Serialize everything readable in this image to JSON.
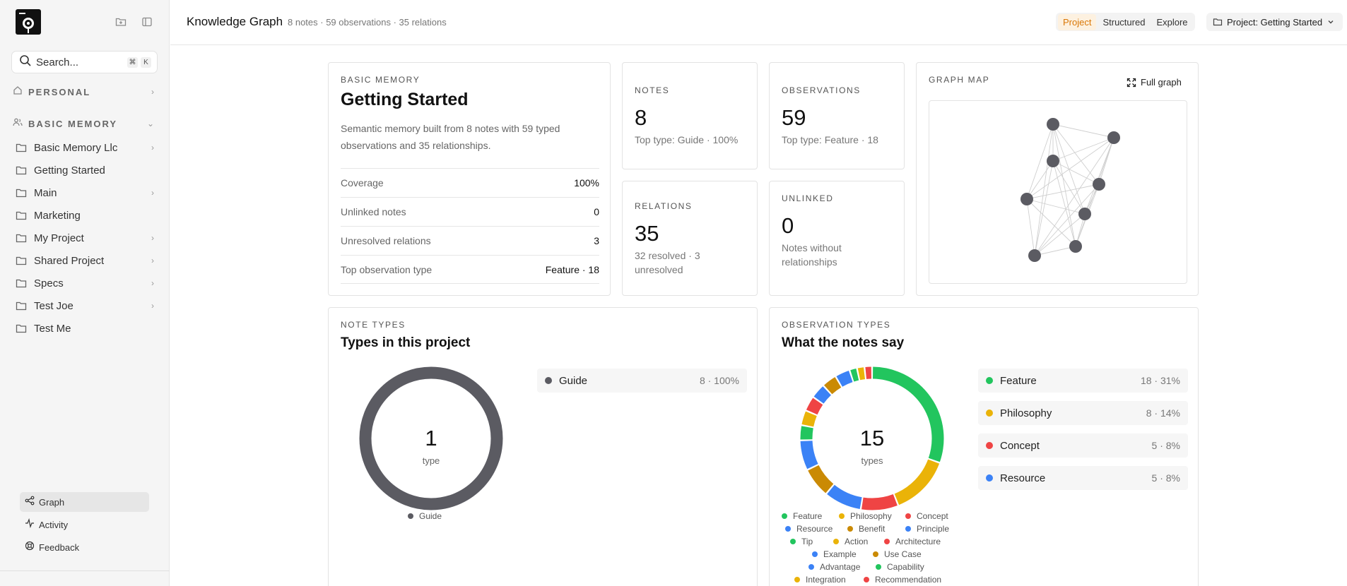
{
  "sidebar": {
    "search_label": "Search...",
    "kbd": [
      "⌘",
      "K"
    ],
    "personal_label": "PERSONAL",
    "basic_memory_label": "BASIC MEMORY",
    "tree": [
      {
        "label": "Basic Memory Llc",
        "has_children": true
      },
      {
        "label": "Getting Started",
        "has_children": false
      },
      {
        "label": "Main",
        "has_children": true
      },
      {
        "label": "Marketing",
        "has_children": false
      },
      {
        "label": "My Project",
        "has_children": true
      },
      {
        "label": "Shared Project",
        "has_children": true
      },
      {
        "label": "Specs",
        "has_children": true
      },
      {
        "label": "Test Joe",
        "has_children": true
      },
      {
        "label": "Test Me",
        "has_children": false
      }
    ],
    "footer": [
      {
        "label": "Graph",
        "icon": "share-graph-icon",
        "active": true
      },
      {
        "label": "Activity",
        "icon": "activity-icon",
        "active": false
      },
      {
        "label": "Feedback",
        "icon": "lifebuoy-icon",
        "active": false
      }
    ]
  },
  "header": {
    "title": "Knowledge Graph",
    "subtitle": "8 notes · 59 observations · 35 relations",
    "tabs": [
      {
        "label": "Project",
        "active": true
      },
      {
        "label": "Structured",
        "active": false
      },
      {
        "label": "Explore",
        "active": false
      }
    ],
    "project_selector": "Project: Getting Started"
  },
  "overview": {
    "eyebrow": "BASIC MEMORY",
    "title": "Getting Started",
    "description": "Semantic memory built from 8 notes with 59 typed observations and 35 relationships.",
    "rows": [
      {
        "key": "Coverage",
        "value": "100%"
      },
      {
        "key": "Unlinked notes",
        "value": "0"
      },
      {
        "key": "Unresolved relations",
        "value": "3"
      },
      {
        "key": "Top observation type",
        "value": "Feature · 18"
      }
    ]
  },
  "stats": {
    "notes": {
      "label": "NOTES",
      "value": "8",
      "sub": "Top type: Guide · 100%"
    },
    "observations": {
      "label": "OBSERVATIONS",
      "value": "59",
      "sub": "Top type: Feature · 18"
    },
    "relations": {
      "label": "RELATIONS",
      "value": "35",
      "sub": "32 resolved · 3 unresolved"
    },
    "unlinked": {
      "label": "UNLINKED",
      "value": "0",
      "sub": "Notes without relationships"
    }
  },
  "graph_map": {
    "label": "GRAPH MAP",
    "button": "Full graph",
    "node_color": "#5b5b62",
    "edge_color": "#cfcfcf"
  },
  "note_types": {
    "eyebrow": "NOTE TYPES",
    "title": "Types in this project",
    "center_value": "1",
    "center_label": "type",
    "ring_color": "#5b5b62",
    "legend_label": "Guide",
    "rows": [
      {
        "name": "Guide",
        "value": "8 · 100%",
        "color": "#5b5b62"
      }
    ]
  },
  "observation_types": {
    "eyebrow": "OBSERVATION TYPES",
    "title": "What the notes say",
    "center_value": "15",
    "center_label": "types",
    "rows": [
      {
        "name": "Feature",
        "value": "18 · 31%",
        "color": "#22c55e"
      },
      {
        "name": "Philosophy",
        "value": "8 · 14%",
        "color": "#eab308"
      },
      {
        "name": "Concept",
        "value": "5 · 8%",
        "color": "#ef4444"
      },
      {
        "name": "Resource",
        "value": "5 · 8%",
        "color": "#3b82f6"
      }
    ],
    "legend": [
      {
        "name": "Feature",
        "color": "#22c55e"
      },
      {
        "name": "Philosophy",
        "color": "#eab308"
      },
      {
        "name": "Concept",
        "color": "#ef4444"
      },
      {
        "name": "Resource",
        "color": "#3b82f6"
      },
      {
        "name": "Benefit",
        "color": "#ca8a04"
      },
      {
        "name": "Principle",
        "color": "#3b82f6"
      },
      {
        "name": "Tip",
        "color": "#22c55e"
      },
      {
        "name": "Action",
        "color": "#eab308"
      },
      {
        "name": "Architecture",
        "color": "#ef4444"
      },
      {
        "name": "Example",
        "color": "#3b82f6"
      },
      {
        "name": "Use Case",
        "color": "#ca8a04"
      },
      {
        "name": "Advantage",
        "color": "#3b82f6"
      },
      {
        "name": "Capability",
        "color": "#22c55e"
      },
      {
        "name": "Integration",
        "color": "#eab308"
      },
      {
        "name": "Recommendation",
        "color": "#ef4444"
      }
    ]
  },
  "chart_data": [
    {
      "type": "pie",
      "title": "Types in this project",
      "categories": [
        "Guide"
      ],
      "values": [
        8
      ]
    },
    {
      "type": "pie",
      "title": "What the notes say",
      "categories": [
        "Feature",
        "Philosophy",
        "Concept",
        "Resource",
        "Benefit",
        "Principle",
        "Tip",
        "Action",
        "Architecture",
        "Example",
        "Use Case",
        "Advantage",
        "Capability",
        "Integration",
        "Recommendation"
      ],
      "values": [
        18,
        8,
        5,
        5,
        4,
        4,
        2,
        2,
        2,
        2,
        2,
        2,
        1,
        1,
        1
      ]
    }
  ]
}
